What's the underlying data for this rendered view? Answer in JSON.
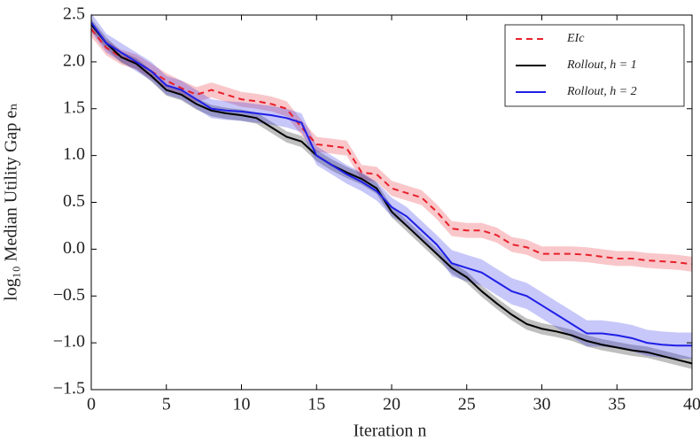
{
  "chart_data": {
    "type": "line",
    "xlabel": "Iteration n",
    "ylabel": "log₁₀ Median Utility Gap eₙ",
    "x": [
      0,
      1,
      2,
      3,
      4,
      5,
      6,
      7,
      8,
      9,
      10,
      11,
      12,
      13,
      14,
      15,
      16,
      17,
      18,
      19,
      20,
      21,
      22,
      23,
      24,
      25,
      26,
      27,
      28,
      29,
      30,
      31,
      32,
      33,
      34,
      35,
      36,
      37,
      38,
      39,
      40
    ],
    "xlim": [
      0,
      40
    ],
    "xticks": [
      0,
      5,
      10,
      15,
      20,
      25,
      30,
      35,
      40
    ],
    "ylim": [
      -1.5,
      2.5
    ],
    "yticks": [
      {
        "value": -1.5,
        "label": "−1.5"
      },
      {
        "value": -1.0,
        "label": "−1.0"
      },
      {
        "value": -0.5,
        "label": "−0.5"
      },
      {
        "value": 0,
        "label": "0.0"
      },
      {
        "value": 0.5,
        "label": "0.5"
      },
      {
        "value": 1.0,
        "label": "1.0"
      },
      {
        "value": 1.5,
        "label": "1.5"
      },
      {
        "value": 2.0,
        "label": "2.0"
      },
      {
        "value": 2.5,
        "label": "2.5"
      }
    ],
    "legend": "upper right",
    "series": [
      {
        "name": "EIc",
        "color": "#e8202a",
        "dashed": true,
        "values": [
          2.35,
          2.15,
          2.05,
          2.0,
          1.9,
          1.8,
          1.72,
          1.65,
          1.7,
          1.65,
          1.6,
          1.58,
          1.55,
          1.5,
          1.3,
          1.12,
          1.1,
          1.08,
          0.82,
          0.8,
          0.65,
          0.6,
          0.55,
          0.4,
          0.22,
          0.2,
          0.2,
          0.15,
          0.05,
          0.02,
          -0.05,
          -0.05,
          -0.05,
          -0.06,
          -0.08,
          -0.1,
          -0.1,
          -0.12,
          -0.13,
          -0.14,
          -0.16
        ],
        "upper": [
          2.43,
          2.23,
          2.13,
          2.08,
          1.98,
          1.88,
          1.8,
          1.73,
          1.78,
          1.73,
          1.68,
          1.66,
          1.63,
          1.58,
          1.38,
          1.2,
          1.18,
          1.16,
          0.9,
          0.88,
          0.73,
          0.68,
          0.63,
          0.48,
          0.3,
          0.28,
          0.28,
          0.23,
          0.13,
          0.1,
          0.03,
          0.03,
          0.03,
          0.02,
          0,
          -0.02,
          -0.02,
          -0.04,
          -0.05,
          -0.06,
          -0.08
        ],
        "lower": [
          2.27,
          2.07,
          1.97,
          1.92,
          1.82,
          1.72,
          1.64,
          1.57,
          1.62,
          1.57,
          1.52,
          1.5,
          1.47,
          1.42,
          1.22,
          1.04,
          1.02,
          1.0,
          0.74,
          0.72,
          0.57,
          0.52,
          0.47,
          0.32,
          0.14,
          0.12,
          0.12,
          0.07,
          -0.03,
          -0.06,
          -0.13,
          -0.13,
          -0.13,
          -0.14,
          -0.16,
          -0.18,
          -0.18,
          -0.2,
          -0.21,
          -0.22,
          -0.24
        ]
      },
      {
        "name": "Rollout, h = 1",
        "color": "#000000",
        "dashed": false,
        "values": [
          2.4,
          2.2,
          2.05,
          1.98,
          1.85,
          1.7,
          1.65,
          1.55,
          1.48,
          1.45,
          1.43,
          1.4,
          1.3,
          1.2,
          1.15,
          1.0,
          0.9,
          0.82,
          0.75,
          0.65,
          0.4,
          0.25,
          0.1,
          -0.05,
          -0.2,
          -0.3,
          -0.45,
          -0.58,
          -0.7,
          -0.8,
          -0.85,
          -0.88,
          -0.92,
          -0.98,
          -1.02,
          -1.05,
          -1.08,
          -1.1,
          -1.14,
          -1.18,
          -1.22
        ],
        "upper": [
          2.46,
          2.26,
          2.11,
          2.04,
          1.91,
          1.76,
          1.71,
          1.61,
          1.54,
          1.51,
          1.49,
          1.46,
          1.36,
          1.26,
          1.21,
          1.06,
          0.96,
          0.88,
          0.81,
          0.71,
          0.46,
          0.31,
          0.16,
          0.01,
          -0.14,
          -0.24,
          -0.39,
          -0.52,
          -0.64,
          -0.74,
          -0.79,
          -0.82,
          -0.86,
          -0.92,
          -0.96,
          -0.99,
          -1.02,
          -1.04,
          -1.08,
          -1.12,
          -1.16
        ],
        "lower": [
          2.34,
          2.14,
          1.99,
          1.92,
          1.79,
          1.64,
          1.59,
          1.49,
          1.42,
          1.39,
          1.37,
          1.34,
          1.24,
          1.14,
          1.09,
          0.94,
          0.84,
          0.76,
          0.69,
          0.59,
          0.34,
          0.19,
          0.04,
          -0.11,
          -0.26,
          -0.36,
          -0.51,
          -0.64,
          -0.76,
          -0.86,
          -0.91,
          -0.94,
          -0.98,
          -1.04,
          -1.08,
          -1.11,
          -1.14,
          -1.16,
          -1.2,
          -1.24,
          -1.28
        ]
      },
      {
        "name": "Rollout, h = 2",
        "color": "#1f1fe6",
        "dashed": false,
        "values": [
          2.42,
          2.2,
          2.1,
          2.0,
          1.9,
          1.75,
          1.7,
          1.6,
          1.5,
          1.48,
          1.47,
          1.45,
          1.43,
          1.4,
          1.35,
          1.0,
          0.9,
          0.8,
          0.72,
          0.62,
          0.45,
          0.35,
          0.2,
          0.05,
          -0.15,
          -0.2,
          -0.25,
          -0.35,
          -0.45,
          -0.5,
          -0.6,
          -0.7,
          -0.8,
          -0.9,
          -0.9,
          -0.92,
          -0.95,
          -1.0,
          -1.02,
          -1.03,
          -1.03
        ],
        "upper": [
          2.52,
          2.3,
          2.2,
          2.1,
          2.0,
          1.85,
          1.8,
          1.7,
          1.6,
          1.58,
          1.57,
          1.55,
          1.53,
          1.5,
          1.45,
          1.1,
          1.0,
          0.9,
          0.82,
          0.72,
          0.55,
          0.45,
          0.3,
          0.15,
          -0.01,
          -0.06,
          -0.11,
          -0.21,
          -0.31,
          -0.36,
          -0.46,
          -0.56,
          -0.66,
          -0.76,
          -0.76,
          -0.78,
          -0.81,
          -0.86,
          -0.88,
          -0.89,
          -0.89
        ],
        "lower": [
          2.32,
          2.1,
          2.0,
          1.9,
          1.8,
          1.65,
          1.6,
          1.5,
          1.4,
          1.38,
          1.37,
          1.35,
          1.33,
          1.3,
          1.25,
          0.9,
          0.8,
          0.7,
          0.62,
          0.52,
          0.35,
          0.25,
          0.1,
          -0.05,
          -0.29,
          -0.34,
          -0.39,
          -0.49,
          -0.59,
          -0.64,
          -0.74,
          -0.84,
          -0.94,
          -1.04,
          -1.04,
          -1.06,
          -1.09,
          -1.14,
          -1.16,
          -1.17,
          -1.17
        ]
      }
    ]
  }
}
